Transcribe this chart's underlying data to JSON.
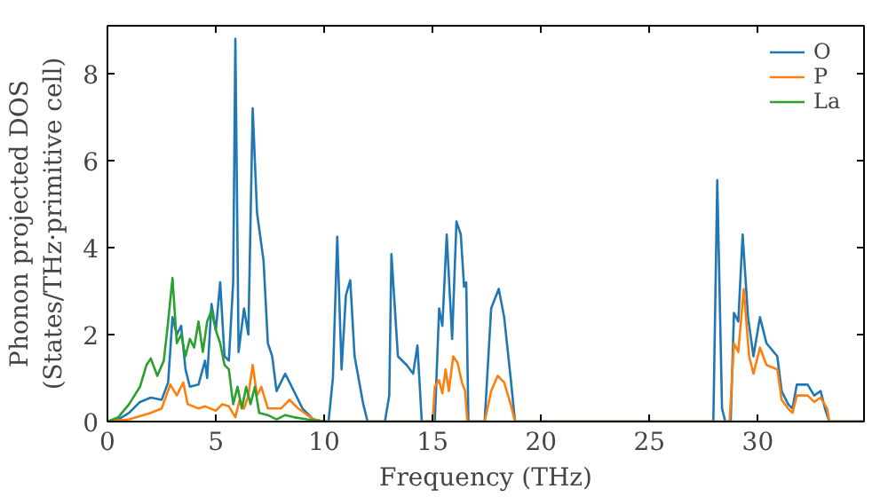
{
  "chart_data": {
    "type": "line",
    "xlabel": "Frequency (THz)",
    "ylabel": "Phonon projected DOS\n(States/THz·primitive cell)",
    "xlim": [
      0,
      34.9
    ],
    "ylim": [
      0,
      9.1
    ],
    "xticks": [
      0,
      5,
      10,
      15,
      20,
      25,
      30
    ],
    "yticks": [
      0,
      2,
      4,
      6,
      8
    ],
    "grid": false,
    "legend": "top right",
    "marker": "none",
    "line_style": "solid",
    "series": [
      {
        "name": "O",
        "color": "#1f77b4",
        "x": [
          0,
          0.5,
          1,
          1.5,
          2,
          2.5,
          2.8,
          3.0,
          3.2,
          3.4,
          3.6,
          3.8,
          4.2,
          4.5,
          4.6,
          4.8,
          5.0,
          5.2,
          5.4,
          5.6,
          5.8,
          5.9,
          6.05,
          6.3,
          6.5,
          6.7,
          6.9,
          7.2,
          7.4,
          7.6,
          7.8,
          8.2,
          8.5,
          9,
          9.5,
          10,
          10.2,
          10.4,
          10.6,
          10.8,
          11.0,
          11.2,
          11.4,
          11.8,
          12,
          12.8,
          13.0,
          13.1,
          13.4,
          13.8,
          14.1,
          14.3,
          14.5,
          15.1,
          15.3,
          15.45,
          15.65,
          15.9,
          16.1,
          16.3,
          16.45,
          16.55,
          16.65,
          17.4,
          17.7,
          18.05,
          18.3,
          18.6,
          18.8,
          27.95,
          28.13,
          28.35,
          28.5,
          28.75,
          28.9,
          29.1,
          29.3,
          29.55,
          29.8,
          30.1,
          30.4,
          30.9,
          31.1,
          31.4,
          31.6,
          31.8,
          32.3,
          32.6,
          32.9,
          33.1,
          33.3,
          34.9
        ],
        "values": [
          0,
          0.05,
          0.2,
          0.45,
          0.55,
          0.5,
          0.9,
          2.4,
          2.0,
          2.2,
          1.2,
          0.8,
          0.85,
          1.4,
          1.0,
          2.7,
          2.1,
          3.2,
          1.5,
          1.4,
          3.2,
          8.8,
          1.6,
          2.6,
          2.0,
          7.2,
          4.8,
          3.7,
          1.8,
          1.5,
          0.7,
          1.1,
          0.8,
          0.3,
          0.05,
          0,
          0,
          1.0,
          4.25,
          1.2,
          2.9,
          3.25,
          1.5,
          0.4,
          0,
          0,
          0.6,
          3.85,
          1.5,
          1.3,
          1.1,
          1.75,
          0,
          0,
          2.6,
          2.2,
          4.3,
          1.9,
          4.6,
          4.3,
          3.1,
          3.2,
          0,
          0,
          2.6,
          3.05,
          2.4,
          1.0,
          0,
          0,
          5.55,
          0.3,
          0,
          0,
          2.5,
          2.3,
          4.3,
          2.4,
          1.5,
          2.4,
          1.8,
          1.5,
          0.7,
          0.4,
          0.3,
          0.85,
          0.85,
          0.6,
          0.7,
          0.3,
          0,
          0
        ]
      },
      {
        "name": "P",
        "color": "#ff7f0e",
        "x": [
          0,
          1,
          2,
          2.5,
          2.9,
          3.2,
          3.5,
          3.7,
          4.2,
          4.5,
          5,
          5.3,
          5.6,
          5.9,
          6.1,
          6.3,
          6.5,
          6.7,
          6.9,
          7.1,
          7.4,
          8.0,
          8.4,
          8.8,
          9.5,
          10,
          15.0,
          15.1,
          15.3,
          15.45,
          15.6,
          15.75,
          15.95,
          16.15,
          16.35,
          16.5,
          16.6,
          17.4,
          17.7,
          18.0,
          18.3,
          18.6,
          18.8,
          28.7,
          28.9,
          29.1,
          29.35,
          29.6,
          29.8,
          30.1,
          30.4,
          30.9,
          31.1,
          31.4,
          31.6,
          31.8,
          32.3,
          32.6,
          32.9,
          33.2,
          33.3,
          34.9
        ],
        "values": [
          0,
          0.05,
          0.2,
          0.3,
          0.85,
          0.6,
          0.9,
          0.4,
          0.3,
          0.35,
          0.25,
          0.4,
          0.35,
          0.1,
          0.5,
          0.3,
          0.6,
          1.3,
          0.6,
          0.8,
          0.3,
          0.3,
          0.5,
          0.3,
          0.05,
          0,
          0,
          0.8,
          0.95,
          0.65,
          1.2,
          0.7,
          1.5,
          1.35,
          0.9,
          0.7,
          0,
          0,
          0.7,
          1.05,
          0.9,
          0.4,
          0,
          0,
          1.8,
          1.6,
          3.05,
          1.5,
          1.1,
          1.7,
          1.3,
          1.2,
          0.5,
          0.3,
          0.2,
          0.6,
          0.6,
          0.45,
          0.55,
          0.3,
          0,
          0
        ]
      },
      {
        "name": "La",
        "color": "#2ca02c",
        "x": [
          0,
          0.5,
          1,
          1.5,
          1.8,
          2.0,
          2.3,
          2.6,
          2.8,
          3.0,
          3.2,
          3.4,
          3.6,
          3.8,
          4.0,
          4.2,
          4.4,
          4.6,
          4.8,
          5.0,
          5.2,
          5.4,
          5.6,
          5.8,
          6.0,
          6.2,
          6.4,
          6.6,
          6.8,
          7.0,
          7.4,
          7.8,
          8.2,
          8.6,
          9.2,
          10,
          34.9
        ],
        "values": [
          0,
          0.1,
          0.4,
          0.8,
          1.3,
          1.45,
          1.05,
          1.4,
          2.3,
          3.3,
          1.8,
          2.0,
          1.5,
          1.9,
          1.7,
          2.3,
          1.6,
          2.3,
          2.55,
          2.1,
          1.8,
          1.3,
          1.2,
          0.4,
          0.8,
          0.3,
          0.8,
          0.4,
          0.8,
          0.2,
          0.15,
          0.05,
          0.15,
          0.1,
          0.05,
          0,
          0
        ]
      }
    ]
  }
}
